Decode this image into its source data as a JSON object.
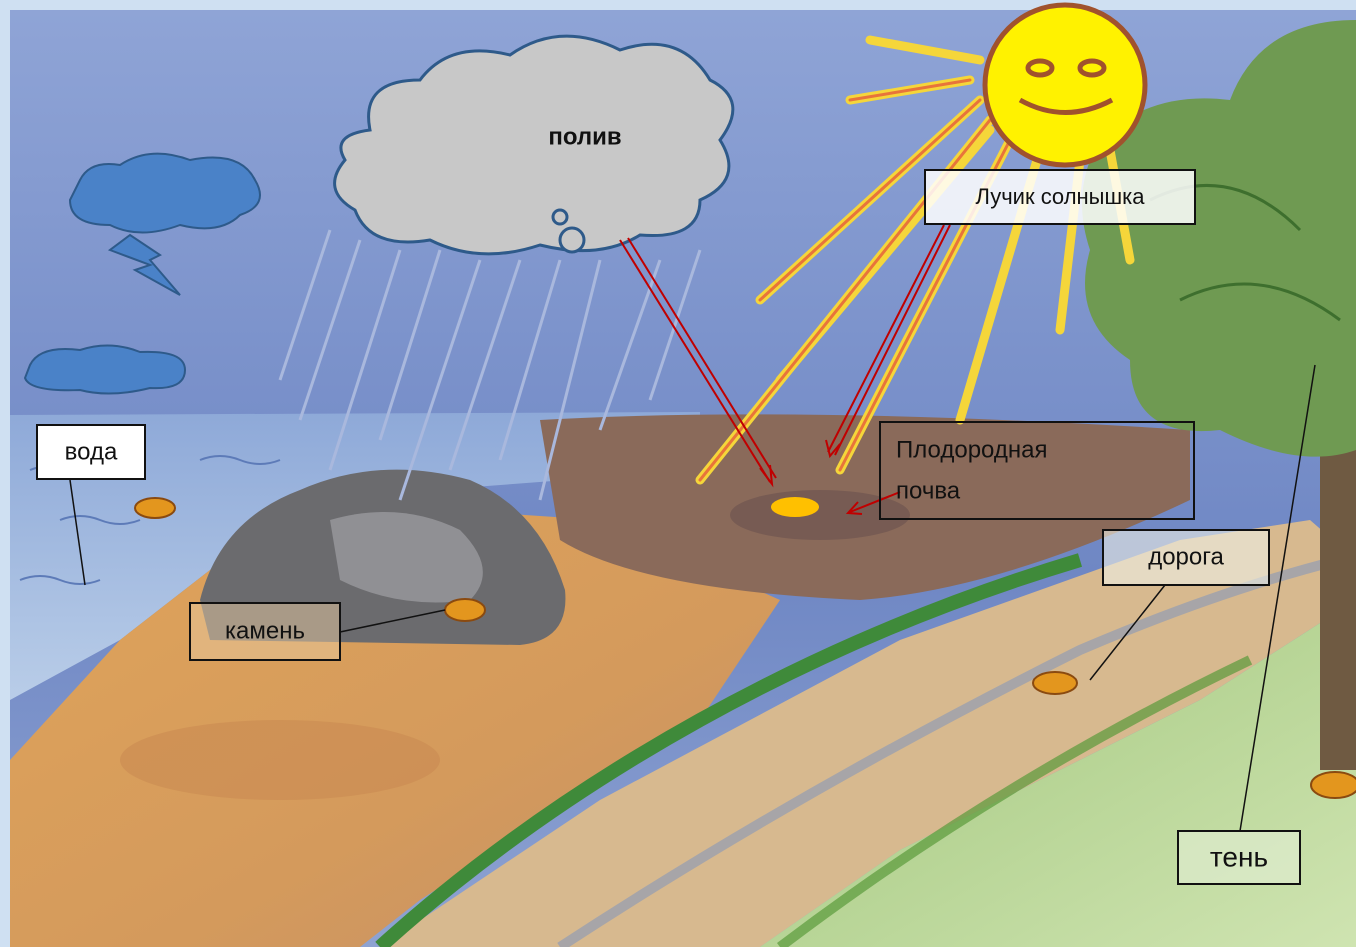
{
  "cloud_label": "полив",
  "labels": {
    "sun_ray": "Лучик солнышка",
    "water": "вода",
    "fertile_soil": [
      "Плодородная",
      "почва"
    ],
    "road": "дорога",
    "stone": "камень",
    "shade": "тень"
  }
}
